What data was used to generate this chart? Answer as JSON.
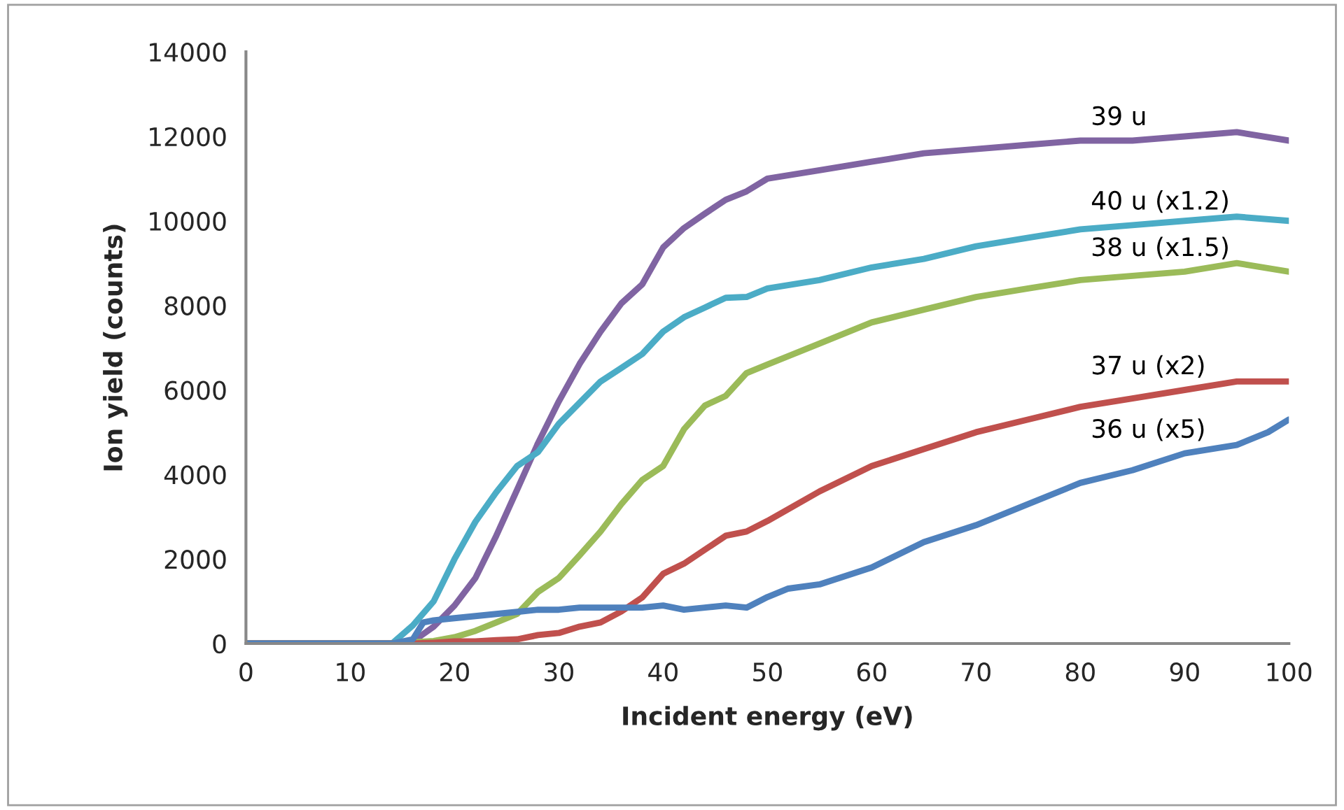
{
  "chart_data": {
    "type": "line",
    "xlabel": "Incident energy (eV)",
    "ylabel": "Ion yield (counts)",
    "xlim": [
      0,
      100
    ],
    "xticks": [
      0,
      10,
      20,
      30,
      40,
      50,
      60,
      70,
      80,
      90,
      100
    ],
    "ylim": [
      0,
      14000
    ],
    "yticks": [
      0,
      2000,
      4000,
      6000,
      8000,
      10000,
      12000,
      14000
    ],
    "grid": false,
    "legend": false,
    "marker": "none",
    "line_style": "solid",
    "series": [
      {
        "name": "39 u",
        "color": "#8064a2",
        "x": [
          0,
          14,
          16,
          18,
          20,
          22,
          24,
          26,
          28,
          30,
          32,
          34,
          36,
          38,
          40,
          42,
          44,
          46,
          48,
          50,
          55,
          60,
          65,
          70,
          75,
          80,
          85,
          90,
          95,
          100
        ],
        "values": [
          0,
          0,
          50,
          400,
          900,
          1550,
          2550,
          3640,
          4740,
          5730,
          6620,
          7380,
          8050,
          8500,
          9370,
          9830,
          10170,
          10500,
          10700,
          11000,
          11200,
          11400,
          11600,
          11700,
          11800,
          11900,
          11900,
          12000,
          12100,
          11900
        ]
      },
      {
        "name": "40 u (x1.2)",
        "color": "#4bacc6",
        "x": [
          0,
          14,
          16,
          18,
          20,
          22,
          24,
          26,
          28,
          30,
          32,
          34,
          36,
          38,
          40,
          42,
          44,
          46,
          48,
          50,
          55,
          60,
          65,
          70,
          75,
          80,
          85,
          90,
          95,
          100
        ],
        "values": [
          0,
          0,
          430,
          1000,
          2000,
          2880,
          3580,
          4200,
          4530,
          5200,
          5700,
          6200,
          6520,
          6850,
          7380,
          7720,
          7950,
          8180,
          8200,
          8400,
          8600,
          8900,
          9100,
          9400,
          9600,
          9800,
          9900,
          10000,
          10100,
          10000
        ]
      },
      {
        "name": "38 u (x1.5)",
        "color": "#9bbb59",
        "x": [
          0,
          14,
          16,
          18,
          20,
          22,
          24,
          26,
          28,
          30,
          32,
          34,
          36,
          38,
          40,
          42,
          44,
          46,
          48,
          50,
          55,
          60,
          65,
          70,
          75,
          80,
          85,
          90,
          95,
          100
        ],
        "values": [
          0,
          0,
          30,
          60,
          150,
          300,
          500,
          700,
          1220,
          1550,
          2090,
          2650,
          3300,
          3870,
          4200,
          5070,
          5630,
          5860,
          6400,
          6600,
          7100,
          7600,
          7900,
          8200,
          8400,
          8600,
          8700,
          8800,
          9000,
          8800
        ]
      },
      {
        "name": "37 u (x2)",
        "color": "#c0504d",
        "x": [
          0,
          16,
          18,
          20,
          22,
          24,
          26,
          28,
          30,
          32,
          34,
          36,
          38,
          40,
          42,
          44,
          46,
          48,
          50,
          55,
          60,
          65,
          70,
          75,
          80,
          85,
          90,
          95,
          100
        ],
        "values": [
          0,
          0,
          20,
          50,
          50,
          80,
          100,
          200,
          250,
          400,
          500,
          760,
          1090,
          1650,
          1890,
          2220,
          2550,
          2650,
          2900,
          3600,
          4200,
          4600,
          5000,
          5300,
          5600,
          5800,
          6000,
          6200,
          6200
        ]
      },
      {
        "name": "36 u (x5)",
        "color": "#4f81bd",
        "x": [
          0,
          14,
          16,
          17,
          18,
          20,
          22,
          24,
          26,
          28,
          30,
          32,
          34,
          36,
          38,
          40,
          42,
          44,
          46,
          48,
          50,
          52,
          55,
          60,
          65,
          70,
          75,
          80,
          85,
          90,
          95,
          98,
          100
        ],
        "values": [
          0,
          0,
          100,
          500,
          550,
          600,
          650,
          700,
          750,
          800,
          800,
          850,
          850,
          850,
          850,
          900,
          800,
          850,
          900,
          850,
          1100,
          1300,
          1400,
          1800,
          2400,
          2800,
          3300,
          3800,
          4100,
          4500,
          4700,
          5000,
          5300
        ]
      }
    ]
  }
}
